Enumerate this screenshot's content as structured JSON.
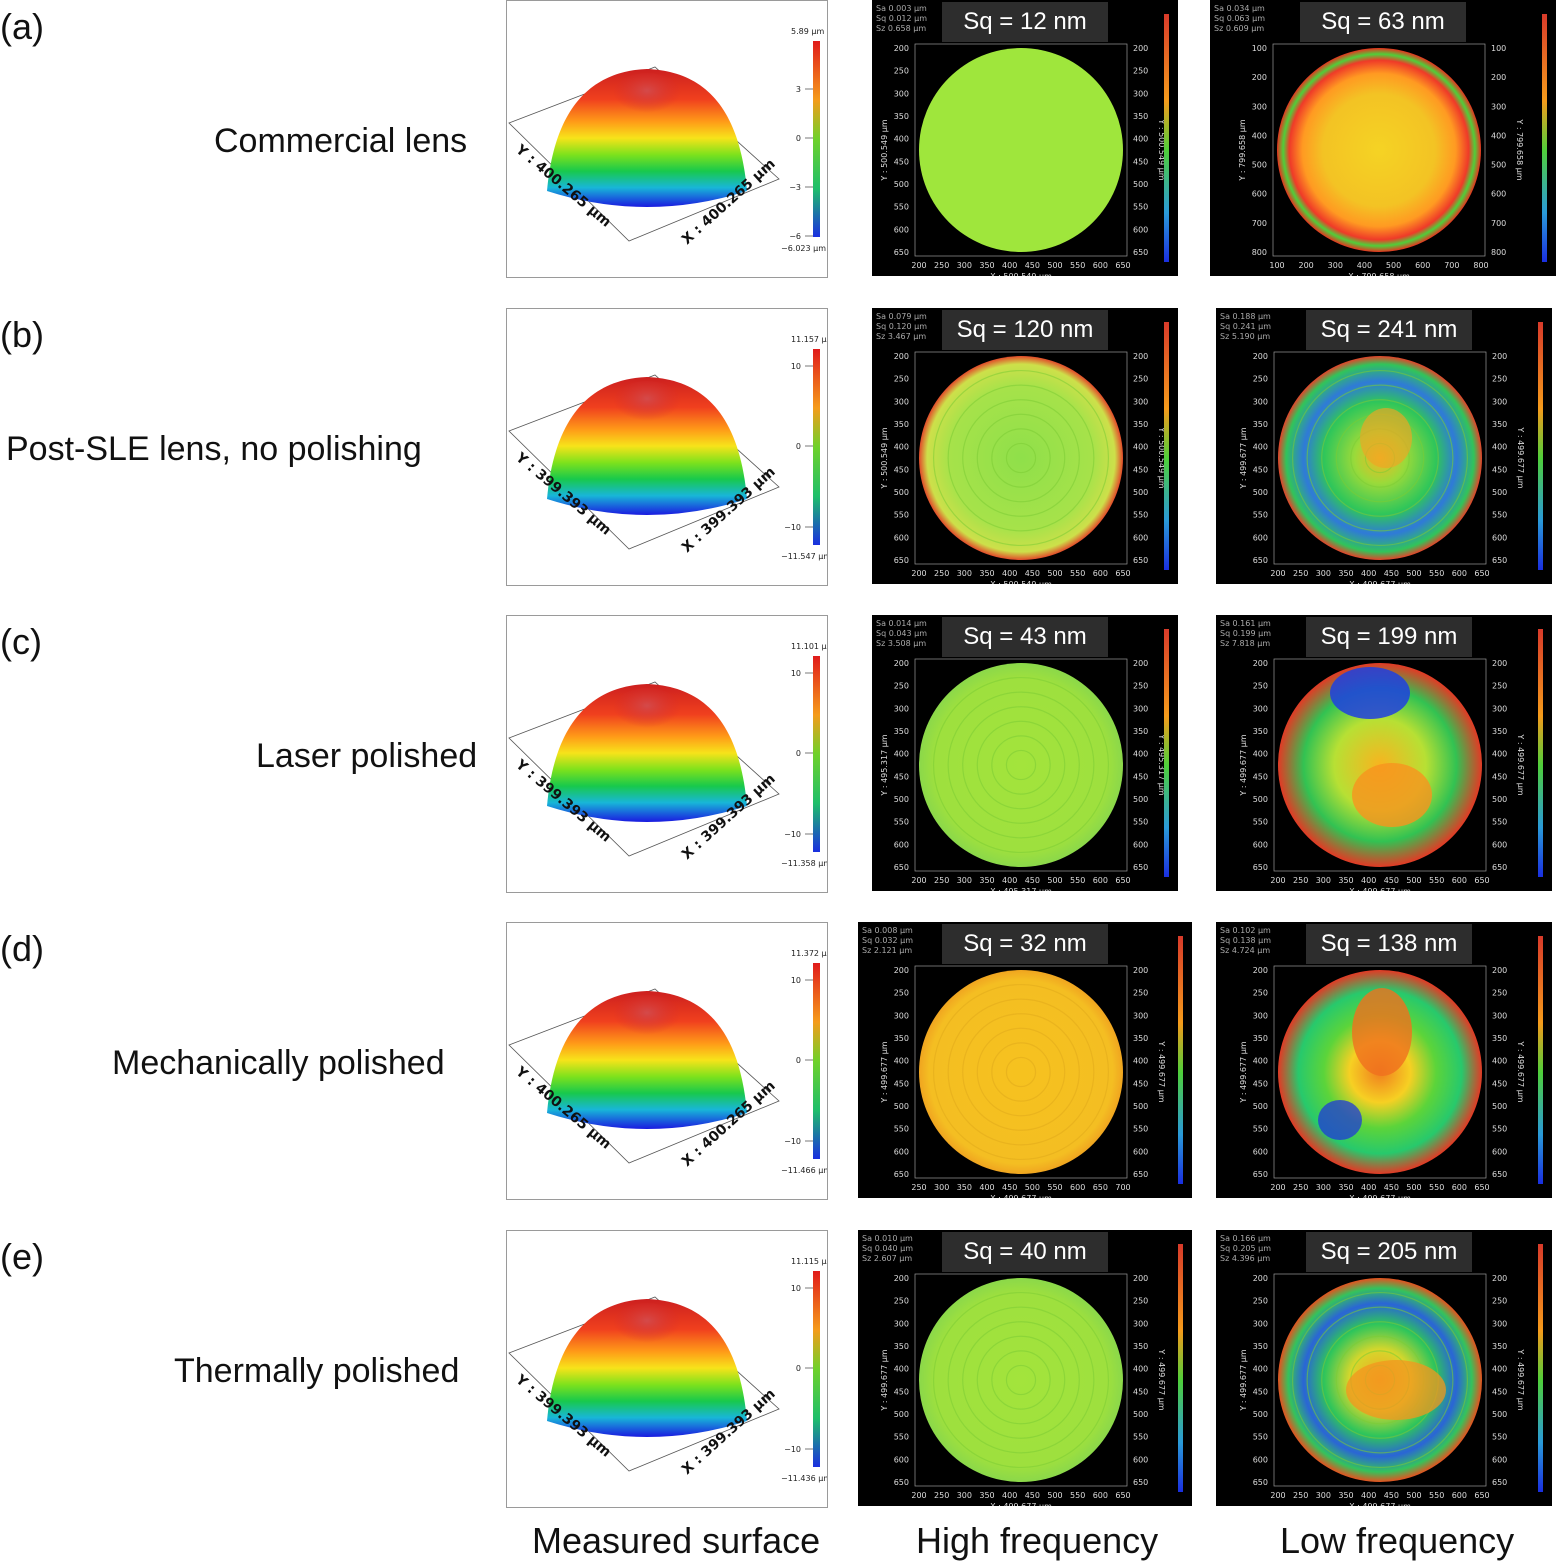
{
  "rows": [
    {
      "label": "(a)",
      "sample": "Commercial lens",
      "surface": {
        "max": "5.89 µm",
        "min": "−6.023 µm",
        "ticks": [
          "3",
          "0",
          "−3",
          "−6"
        ],
        "x_axis": "X : 400.265 µm",
        "y_axis": "Y : 400.265 µm"
      },
      "high": {
        "sq": "Sq =  12 nm",
        "stats": [
          "Sa 0.003 µm",
          "Sq 0.012 µm",
          "Sz 0.658 µm"
        ],
        "xlabel": "X : 500.549 µm",
        "ylabel": "Y : 500.549 µm",
        "xticks": [
          "200",
          "250",
          "300",
          "350",
          "400",
          "450",
          "500",
          "550",
          "600",
          "650"
        ],
        "yticks": [
          "200",
          "250",
          "300",
          "350",
          "400",
          "450",
          "500",
          "550",
          "600",
          "650"
        ]
      },
      "low": {
        "sq": "Sq =  63 nm",
        "stats": [
          "Sa 0.034 µm",
          "Sq 0.063 µm",
          "Sz 0.609 µm"
        ],
        "xlabel": "X : 799.658 µm",
        "ylabel": "Y : 799.658 µm",
        "xticks": [
          "100",
          "200",
          "300",
          "400",
          "500",
          "600",
          "700",
          "800"
        ],
        "yticks": [
          "100",
          "200",
          "300",
          "400",
          "500",
          "600",
          "700",
          "800"
        ]
      }
    },
    {
      "label": "(b)",
      "sample": "Post-SLE lens, no polishing",
      "surface": {
        "max": "11.157 µm",
        "min": "−11.547 µm",
        "ticks": [
          "10",
          "0",
          "−10"
        ],
        "x_axis": "X : 399.393 µm",
        "y_axis": "Y : 399.393 µm"
      },
      "high": {
        "sq": "Sq =  120 nm",
        "stats": [
          "Sa 0.079 µm",
          "Sq 0.120 µm",
          "Sz 3.467 µm"
        ],
        "xlabel": "X : 500.549 µm",
        "ylabel": "Y : 500.549 µm",
        "xticks": [
          "200",
          "250",
          "300",
          "350",
          "400",
          "450",
          "500",
          "550",
          "600",
          "650"
        ],
        "yticks": [
          "200",
          "250",
          "300",
          "350",
          "400",
          "450",
          "500",
          "550",
          "600",
          "650"
        ]
      },
      "low": {
        "sq": "Sq =  241 nm",
        "stats": [
          "Sa 0.188 µm",
          "Sq 0.241 µm",
          "Sz 5.190 µm"
        ],
        "xlabel": "X : 499.677 µm",
        "ylabel": "Y : 499.677 µm",
        "xticks": [
          "200",
          "250",
          "300",
          "350",
          "400",
          "450",
          "500",
          "550",
          "600",
          "650"
        ],
        "yticks": [
          "200",
          "250",
          "300",
          "350",
          "400",
          "450",
          "500",
          "550",
          "600",
          "650"
        ]
      }
    },
    {
      "label": "(c)",
      "sample": "Laser polished",
      "surface": {
        "max": "11.101 µm",
        "min": "−11.358 µm",
        "ticks": [
          "10",
          "0",
          "−10"
        ],
        "x_axis": "X : 399.393 µm",
        "y_axis": "Y : 399.393 µm"
      },
      "high": {
        "sq": "Sq =  43 nm",
        "stats": [
          "Sa 0.014 µm",
          "Sq 0.043 µm",
          "Sz 3.508 µm"
        ],
        "xlabel": "X : 495.317 µm",
        "ylabel": "Y : 495.317 µm",
        "xticks": [
          "200",
          "250",
          "300",
          "350",
          "400",
          "450",
          "500",
          "550",
          "600",
          "650"
        ],
        "yticks": [
          "200",
          "250",
          "300",
          "350",
          "400",
          "450",
          "500",
          "550",
          "600",
          "650"
        ]
      },
      "low": {
        "sq": "Sq =  199 nm",
        "stats": [
          "Sa 0.161 µm",
          "Sq 0.199 µm",
          "Sz 7.818 µm"
        ],
        "xlabel": "X : 499.677 µm",
        "ylabel": "Y : 499.677 µm",
        "xticks": [
          "200",
          "250",
          "300",
          "350",
          "400",
          "450",
          "500",
          "550",
          "600",
          "650"
        ],
        "yticks": [
          "200",
          "250",
          "300",
          "350",
          "400",
          "450",
          "500",
          "550",
          "600",
          "650"
        ]
      }
    },
    {
      "label": "(d)",
      "sample": "Mechanically polished",
      "surface": {
        "max": "11.372 µm",
        "min": "−11.466 µm",
        "ticks": [
          "10",
          "0",
          "−10"
        ],
        "x_axis": "X : 400.265 µm",
        "y_axis": "Y : 400.265 µm"
      },
      "high": {
        "sq": "Sq =  32 nm",
        "stats": [
          "Sa 0.008 µm",
          "Sq 0.032 µm",
          "Sz 2.121 µm"
        ],
        "xlabel": "X : 499.677 µm",
        "ylabel": "Y : 499.677 µm",
        "xticks": [
          "250",
          "300",
          "350",
          "400",
          "450",
          "500",
          "550",
          "600",
          "650",
          "700"
        ],
        "yticks": [
          "200",
          "250",
          "300",
          "350",
          "400",
          "450",
          "500",
          "550",
          "600",
          "650"
        ]
      },
      "low": {
        "sq": "Sq =  138 nm",
        "stats": [
          "Sa 0.102 µm",
          "Sq 0.138 µm",
          "Sz 4.724 µm"
        ],
        "xlabel": "X : 499.677 µm",
        "ylabel": "Y : 499.677 µm",
        "xticks": [
          "200",
          "250",
          "300",
          "350",
          "400",
          "450",
          "500",
          "550",
          "600",
          "650"
        ],
        "yticks": [
          "200",
          "250",
          "300",
          "350",
          "400",
          "450",
          "500",
          "550",
          "600",
          "650"
        ]
      }
    },
    {
      "label": "(e)",
      "sample": "Thermally polished",
      "surface": {
        "max": "11.115 µm",
        "min": "−11.436 µm",
        "ticks": [
          "10",
          "0",
          "−10"
        ],
        "x_axis": "X : 399.393 µm",
        "y_axis": "Y : 399.393 µm"
      },
      "high": {
        "sq": "Sq =  40 nm",
        "stats": [
          "Sa 0.010 µm",
          "Sq 0.040 µm",
          "Sz 2.607 µm"
        ],
        "xlabel": "X : 499.677 µm",
        "ylabel": "Y : 499.677 µm",
        "xticks": [
          "200",
          "250",
          "300",
          "350",
          "400",
          "450",
          "500",
          "550",
          "600",
          "650"
        ],
        "yticks": [
          "200",
          "250",
          "300",
          "350",
          "400",
          "450",
          "500",
          "550",
          "600",
          "650"
        ]
      },
      "low": {
        "sq": "Sq =  205 nm",
        "stats": [
          "Sa 0.166 µm",
          "Sq 0.205 µm",
          "Sz 4.396 µm"
        ],
        "xlabel": "X : 499.677 µm",
        "ylabel": "Y : 499.677 µm",
        "xticks": [
          "200",
          "250",
          "300",
          "350",
          "400",
          "450",
          "500",
          "550",
          "600",
          "650"
        ],
        "yticks": [
          "200",
          "250",
          "300",
          "350",
          "400",
          "450",
          "500",
          "550",
          "600",
          "650"
        ]
      }
    }
  ],
  "columns": {
    "measured": "Measured surface",
    "high": "High frequency",
    "low": "Low frequency"
  },
  "colors": {
    "map_bg": "#000000",
    "green_map": "#9fe63c",
    "yellow_map": "#f3c623"
  }
}
